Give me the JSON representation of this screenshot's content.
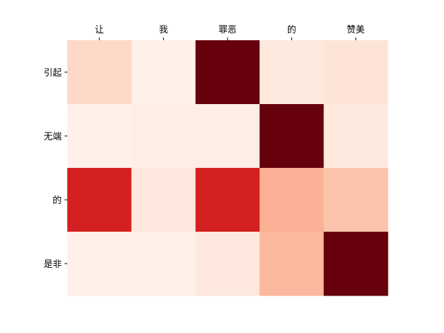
{
  "chart_data": {
    "type": "heatmap",
    "x_categories": [
      "让",
      "我",
      "罪恶",
      "的",
      "赞美"
    ],
    "y_categories": [
      "引起",
      "无端",
      "的",
      "是非"
    ],
    "x_axis_position": "top",
    "grid": false,
    "colormap": "Reds",
    "values": [
      [
        0.15,
        0.03,
        1.0,
        0.07,
        0.1
      ],
      [
        0.03,
        0.04,
        0.04,
        1.0,
        0.07
      ],
      [
        0.72,
        0.08,
        0.72,
        0.28,
        0.22
      ],
      [
        0.03,
        0.03,
        0.08,
        0.26,
        1.0
      ]
    ]
  }
}
